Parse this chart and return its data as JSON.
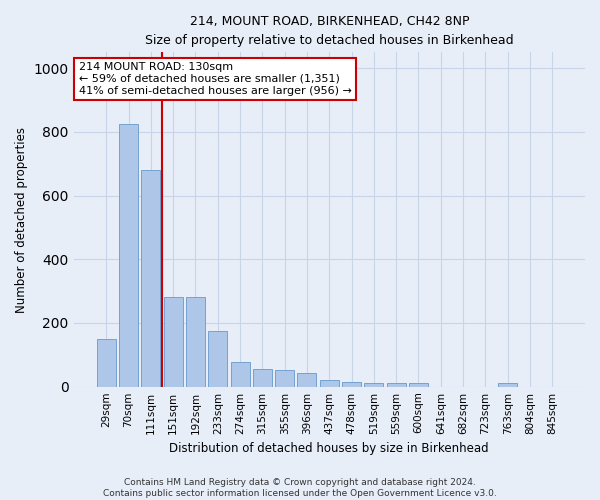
{
  "title": "214, MOUNT ROAD, BIRKENHEAD, CH42 8NP",
  "subtitle": "Size of property relative to detached houses in Birkenhead",
  "xlabel": "Distribution of detached houses by size in Birkenhead",
  "ylabel": "Number of detached properties",
  "categories": [
    "29sqm",
    "70sqm",
    "111sqm",
    "151sqm",
    "192sqm",
    "233sqm",
    "274sqm",
    "315sqm",
    "355sqm",
    "396sqm",
    "437sqm",
    "478sqm",
    "519sqm",
    "559sqm",
    "600sqm",
    "641sqm",
    "682sqm",
    "723sqm",
    "763sqm",
    "804sqm",
    "845sqm"
  ],
  "values": [
    150,
    825,
    682,
    283,
    283,
    175,
    78,
    55,
    52,
    42,
    22,
    14,
    12,
    11,
    11,
    0,
    0,
    0,
    12,
    0,
    0
  ],
  "bar_color": "#aec6e8",
  "bar_edge_color": "#6699cc",
  "grid_color": "#c8d4e8",
  "vline_x": 2.5,
  "vline_color": "#cc0000",
  "annotation_text": "214 MOUNT ROAD: 130sqm\n← 59% of detached houses are smaller (1,351)\n41% of semi-detached houses are larger (956) →",
  "annotation_box_color": "#ffffff",
  "annotation_box_edge": "#cc0000",
  "ylim": [
    0,
    1050
  ],
  "footnote": "Contains HM Land Registry data © Crown copyright and database right 2024.\nContains public sector information licensed under the Open Government Licence v3.0.",
  "bg_color": "#e8eef8"
}
